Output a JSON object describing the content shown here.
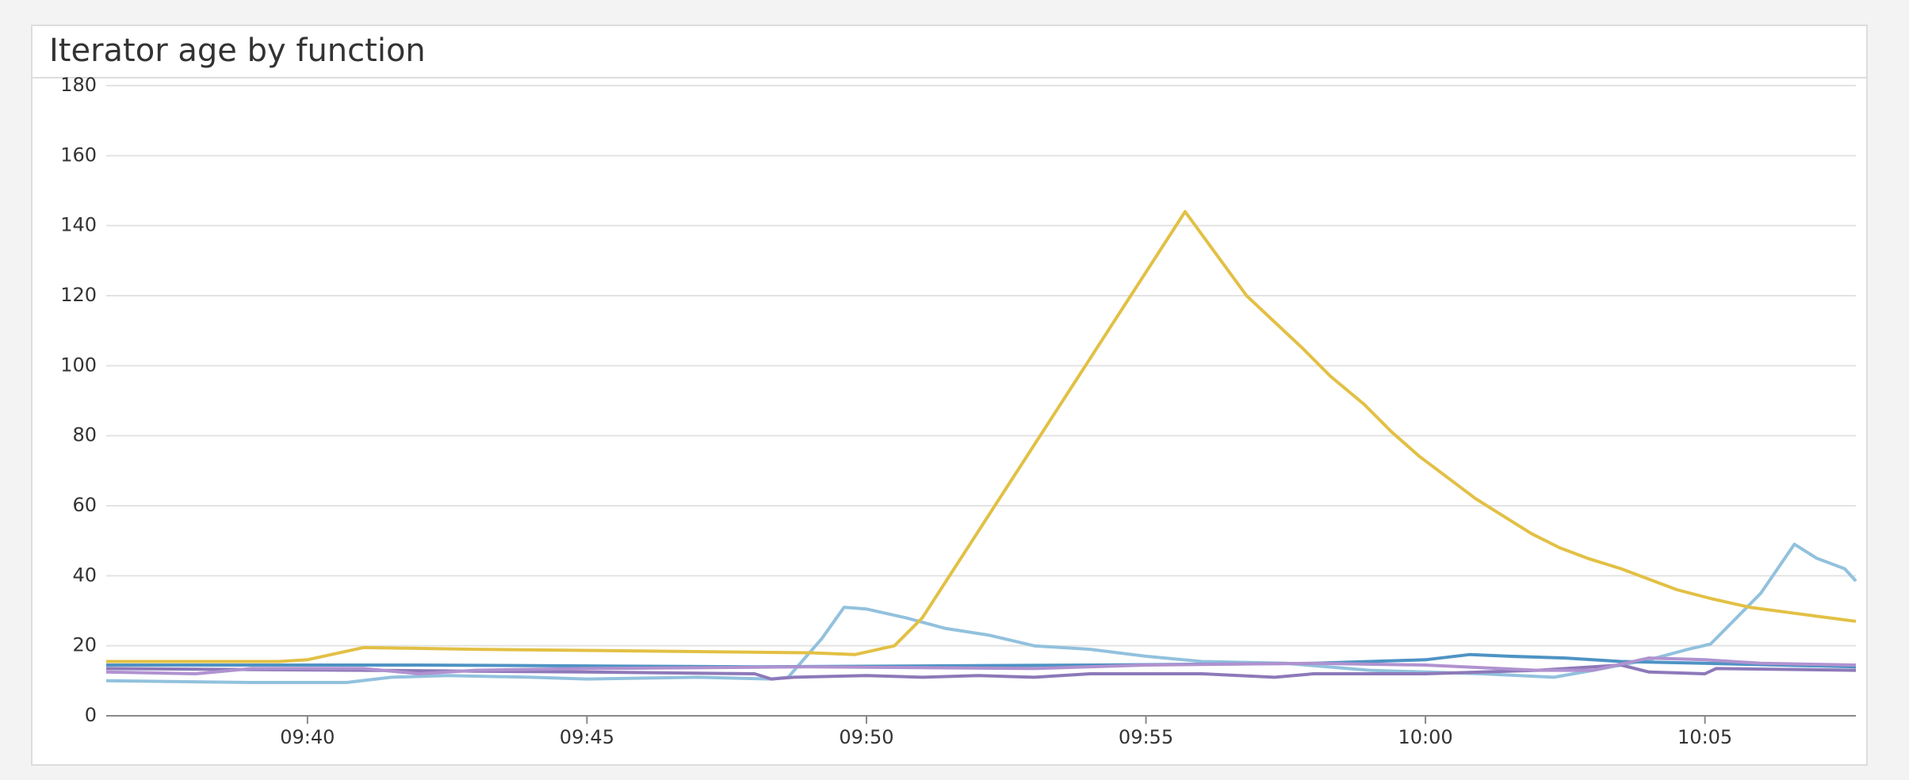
{
  "chart_data": {
    "type": "line",
    "title": "Iterator age by function",
    "xlim": [
      576.4,
      607.7
    ],
    "xticks": [
      {
        "value": 580,
        "label": "09:40"
      },
      {
        "value": 585,
        "label": "09:45"
      },
      {
        "value": 590,
        "label": "09:50"
      },
      {
        "value": 595,
        "label": "09:55"
      },
      {
        "value": 600,
        "label": "10:00"
      },
      {
        "value": 605,
        "label": "10:05"
      }
    ],
    "ylim": [
      0,
      180
    ],
    "yticks": [
      0,
      20,
      40,
      60,
      80,
      100,
      120,
      140,
      160,
      180
    ],
    "grid": true,
    "series": [
      {
        "color": "#92c1dd",
        "x": [
          576.4,
          579,
          580.7,
          581.5,
          582.5,
          584,
          585,
          587,
          588.3,
          588.6,
          589.2,
          589.6,
          590,
          590.7,
          591.4,
          592.2,
          593,
          594,
          595,
          596,
          597.5,
          599,
          601,
          602.3,
          603,
          604,
          604.7,
          605.1,
          606,
          606.6,
          607,
          607.5,
          607.7
        ],
        "values": [
          10,
          9.5,
          9.5,
          11,
          11.5,
          11,
          10.5,
          11,
          10.5,
          11,
          22,
          31,
          30.5,
          28,
          25,
          23,
          20,
          19,
          17,
          15.5,
          15,
          13,
          12,
          11,
          13,
          16,
          19,
          20.5,
          35,
          49,
          45,
          42,
          38.5
        ]
      },
      {
        "color": "#4e93c4",
        "x": [
          576.4,
          582,
          588,
          594,
          598,
          600,
          600.8,
          601.5,
          602.5,
          603.5,
          605,
          607.7
        ],
        "values": [
          14.5,
          14.5,
          14,
          14.5,
          15,
          16,
          17.5,
          17,
          16.5,
          15.5,
          15,
          14
        ]
      },
      {
        "color": "#8d79b9",
        "x": [
          576.4,
          581,
          585,
          588,
          588.3,
          588.7,
          590,
          591,
          592,
          593,
          594,
          596,
          597.3,
          598,
          600,
          602,
          603.5,
          604,
          605,
          605.2,
          607.7
        ],
        "values": [
          13.5,
          13,
          12.5,
          12,
          10.5,
          11,
          11.5,
          11,
          11.5,
          11,
          12,
          12,
          11,
          12,
          12,
          13,
          14.5,
          12.5,
          12,
          13.5,
          13
        ]
      },
      {
        "color": "#b092d0",
        "x": [
          576.4,
          578,
          579,
          581,
          582,
          583,
          585,
          589,
          593,
          595,
          598,
          600,
          602,
          603,
          604,
          605,
          606,
          607.7
        ],
        "values": [
          12.5,
          12,
          13.5,
          13.5,
          12,
          13,
          13.5,
          14,
          13.5,
          14.5,
          15,
          14.5,
          13,
          13,
          16.5,
          16,
          15,
          14.5
        ]
      },
      {
        "color": "#e2c044",
        "x": [
          576.4,
          579.5,
          580,
          581,
          583,
          589,
          589.8,
          590.5,
          591,
          595.7,
          596.8,
          597.2,
          597.8,
          598.3,
          598.9,
          599.4,
          599.9,
          600.4,
          600.9,
          601.4,
          601.9,
          602.4,
          602.9,
          603.5,
          604,
          604.5,
          605.1,
          605.8,
          606.5,
          607.7
        ],
        "values": [
          15.5,
          15.5,
          16,
          19.5,
          19,
          18,
          17.5,
          20,
          28,
          144,
          120,
          114,
          105,
          97,
          89,
          81,
          74,
          68,
          62,
          57,
          52,
          48,
          45,
          42,
          39,
          36,
          33.5,
          31,
          29.5,
          27
        ]
      }
    ]
  }
}
